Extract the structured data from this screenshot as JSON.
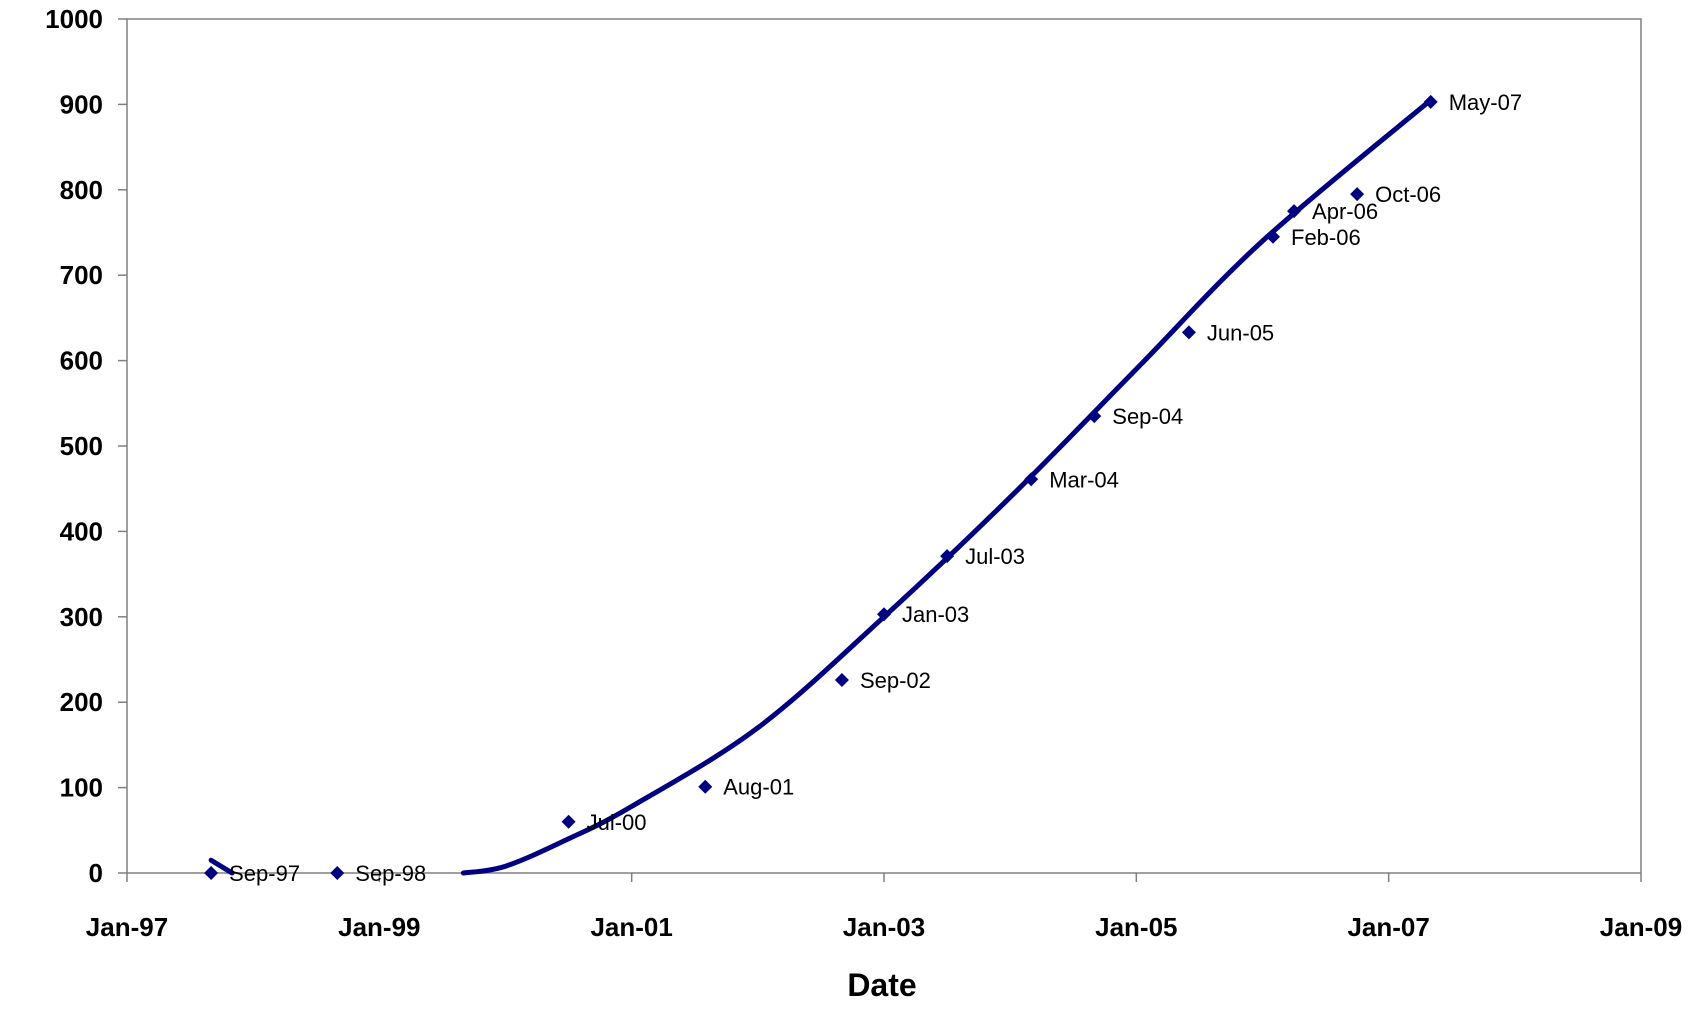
{
  "chart_data": {
    "type": "scatter",
    "title": "",
    "xlabel": "Date",
    "ylabel": "",
    "ylim": [
      0,
      1000
    ],
    "yticks": [
      0,
      100,
      200,
      300,
      400,
      500,
      600,
      700,
      800,
      900,
      1000
    ],
    "xlim": [
      "1997-01",
      "2009-01"
    ],
    "xticks": [
      {
        "date": "1997-01",
        "label": "Jan-97"
      },
      {
        "date": "1999-01",
        "label": "Jan-99"
      },
      {
        "date": "2001-01",
        "label": "Jan-01"
      },
      {
        "date": "2003-01",
        "label": "Jan-03"
      },
      {
        "date": "2005-01",
        "label": "Jan-05"
      },
      {
        "date": "2007-01",
        "label": "Jan-07"
      },
      {
        "date": "2009-01",
        "label": "Jan-09"
      }
    ],
    "grid": false,
    "legend": "none",
    "series": [
      {
        "points": [
          {
            "date": "1997-09",
            "label": "Sep-97",
            "y": 0
          },
          {
            "date": "1998-09",
            "label": "Sep-98",
            "y": 0
          },
          {
            "date": "2000-07",
            "label": "Jul-00",
            "y": 60
          },
          {
            "date": "2001-08",
            "label": "Aug-01",
            "y": 101
          },
          {
            "date": "2002-09",
            "label": "Sep-02",
            "y": 226
          },
          {
            "date": "2003-01",
            "label": "Jan-03",
            "y": 303
          },
          {
            "date": "2003-07",
            "label": "Jul-03",
            "y": 371
          },
          {
            "date": "2004-03",
            "label": "Mar-04",
            "y": 461
          },
          {
            "date": "2004-09",
            "label": "Sep-04",
            "y": 535
          },
          {
            "date": "2005-06",
            "label": "Jun-05",
            "y": 633
          },
          {
            "date": "2006-02",
            "label": "Feb-06",
            "y": 745
          },
          {
            "date": "2006-04",
            "label": "Apr-06",
            "y": 775
          },
          {
            "date": "2006-10",
            "label": "Oct-06",
            "y": 795
          },
          {
            "date": "2007-05",
            "label": "May-07",
            "y": 903
          }
        ]
      }
    ],
    "trendline": {
      "points": [
        {
          "date": "1997-09",
          "y": 15
        },
        {
          "date": "1997-11",
          "y": 0
        },
        {
          "date": "1999-09",
          "y": 0
        },
        {
          "date": "2000-01",
          "y": 8
        },
        {
          "date": "2000-07",
          "y": 40
        },
        {
          "date": "2001-01",
          "y": 78
        },
        {
          "date": "2002-01",
          "y": 170
        },
        {
          "date": "2003-01",
          "y": 300
        },
        {
          "date": "2004-01",
          "y": 440
        },
        {
          "date": "2005-01",
          "y": 590
        },
        {
          "date": "2006-01",
          "y": 740
        },
        {
          "date": "2007-05",
          "y": 905
        }
      ]
    },
    "colors": {
      "marker": "#000080",
      "trendline": "#000080",
      "axis": "#808080"
    }
  }
}
